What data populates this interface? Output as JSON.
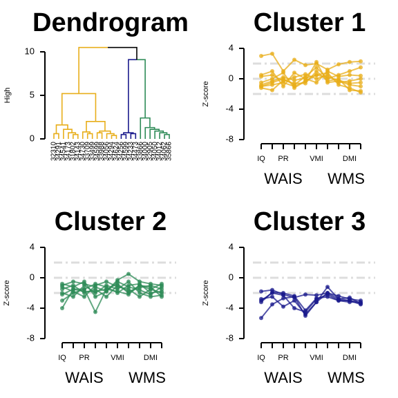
{
  "chart_data": [
    {
      "type": "dendrogram",
      "title": "Dendrogram",
      "y_label": "High",
      "ylim": [
        0,
        10
      ],
      "yticks": [
        0,
        5,
        10
      ],
      "leaves": [
        "32310",
        "34291",
        "34541",
        "34173",
        "31802",
        "34143",
        "34730",
        "33709",
        "33499",
        "34599",
        "33988",
        "34056",
        "34294",
        "34624",
        "34256",
        "34599",
        "34233",
        "34473",
        "33866",
        "34000",
        "32905",
        "34050",
        "34012",
        "34062",
        "35866"
      ],
      "tree": {
        "height": 10.5,
        "children": [
          {
            "height": 5.2,
            "color": "#E8AE1A",
            "children": [
              {
                "height": 1.6,
                "children": [
                  {
                    "height": 0.6,
                    "children": [
                      0,
                      1
                    ]
                  },
                  {
                    "height": 1.1,
                    "children": [
                      2,
                      {
                        "height": 0.7,
                        "children": [
                          3,
                          {
                            "height": 0.5,
                            "children": [
                              4,
                              5
                            ]
                          }
                        ]
                      }
                    ]
                  }
                ]
              },
              {
                "height": 2.0,
                "children": [
                  {
                    "height": 0.8,
                    "children": [
                      6,
                      {
                        "height": 0.6,
                        "children": [
                          7,
                          8
                        ]
                      }
                    ]
                  },
                  {
                    "height": 0.9,
                    "children": [
                      {
                        "height": 0.7,
                        "children": [
                          9,
                          10
                        ]
                      },
                      {
                        "height": 0.6,
                        "children": [
                          11,
                          {
                            "height": 0.4,
                            "children": [
                              12,
                              13
                            ]
                          }
                        ]
                      }
                    ]
                  }
                ]
              }
            ]
          },
          {
            "height": 9.1,
            "children": [
              {
                "height": 0.7,
                "color": "#1A1A8C",
                "children": [
                  {
                    "height": 0.5,
                    "children": [
                      14,
                      15
                    ]
                  },
                  {
                    "height": 0.6,
                    "children": [
                      16,
                      17
                    ]
                  }
                ]
              },
              {
                "height": 2.4,
                "color": "#2E8B57",
                "children": [
                  18,
                  {
                    "height": 1.3,
                    "children": [
                      19,
                      {
                        "height": 1.1,
                        "children": [
                          20,
                          {
                            "height": 0.9,
                            "children": [
                              21,
                              {
                                "height": 0.7,
                                "children": [
                                  22,
                                  {
                                    "height": 0.5,
                                    "children": [
                                      23,
                                      24
                                    ]
                                  }
                                ]
                              }
                            ]
                          }
                        ]
                      }
                    ]
                  }
                ]
              }
            ]
          }
        ]
      }
    },
    {
      "type": "line",
      "title": "Cluster 1",
      "y_label": "Z-score",
      "color": "#E8AE1A",
      "ylim": [
        -8,
        4
      ],
      "yticks": [
        -8,
        -4,
        0,
        4
      ],
      "reference_lines": [
        2,
        0,
        -2
      ],
      "categories": [
        "IQ",
        null,
        "PR",
        null,
        null,
        "VMI",
        null,
        null,
        "DMI",
        null
      ],
      "x_group_labels": [
        "WAIS",
        "WMS"
      ],
      "series": [
        {
          "values": [
            3,
            3.3,
            1,
            2.5,
            1.8,
            2,
            1.2,
            1.9,
            2.2,
            2.3
          ]
        },
        {
          "values": [
            -1,
            -0.5,
            0,
            -0.8,
            0.3,
            1.5,
            0,
            0.5,
            1,
            1.5
          ]
        },
        {
          "values": [
            -0.5,
            0,
            0.8,
            -1.2,
            -0.3,
            2.2,
            -0.5,
            -0.3,
            -0.8,
            -1
          ]
        },
        {
          "values": [
            0.3,
            0.5,
            -0.3,
            0.2,
            0.6,
            0,
            0.5,
            -0.5,
            -0.3,
            0
          ]
        },
        {
          "values": [
            -1,
            -0.8,
            -0.5,
            -1,
            -0.3,
            0.5,
            0.8,
            -0.8,
            -1.2,
            -1.8
          ]
        },
        {
          "values": [
            0.5,
            1,
            -1,
            0.8,
            0,
            -0.5,
            1,
            0.3,
            0.5,
            0.4
          ]
        },
        {
          "values": [
            -0.8,
            -0.3,
            0.2,
            -0.2,
            0.1,
            0.5,
            0.2,
            -0.2,
            -0.6,
            -0.5
          ]
        },
        {
          "values": [
            -1.2,
            -1.5,
            -0.2,
            -0.6,
            -0.6,
            1,
            -0.3,
            0,
            -1.5,
            -1.6
          ]
        }
      ]
    },
    {
      "type": "line",
      "title": "Cluster 2",
      "y_label": "Z-score",
      "color": "#2E8B57",
      "ylim": [
        -8,
        4
      ],
      "yticks": [
        -8,
        -4,
        0,
        4
      ],
      "reference_lines": [
        2,
        0,
        -2
      ],
      "categories": [
        "IQ",
        null,
        "PR",
        null,
        null,
        "VMI",
        null,
        null,
        "DMI",
        null
      ],
      "x_group_labels": [
        "WAIS",
        "WMS"
      ],
      "series": [
        {
          "values": [
            -4,
            -1.5,
            -1.5,
            -4.5,
            -1.5,
            -0.8,
            -2,
            -1,
            -1.5,
            -2
          ]
        },
        {
          "values": [
            -1,
            -0.5,
            -0.8,
            -1.2,
            -1.8,
            -0.3,
            0.5,
            -0.5,
            -0.8,
            -1
          ]
        },
        {
          "values": [
            -2,
            -2.5,
            -1,
            -2,
            -1,
            -1.5,
            -0.5,
            -2,
            -2.5,
            -2.3
          ]
        },
        {
          "values": [
            -1.5,
            -1,
            -2,
            -1.5,
            -2.5,
            -1,
            -1.8,
            -1.3,
            -1,
            -1.5
          ]
        },
        {
          "values": [
            -3,
            -2,
            -1.5,
            -0.8,
            -1.2,
            -2,
            -1,
            -0.8,
            -2,
            -1.8
          ]
        },
        {
          "values": [
            -1.2,
            -1.8,
            -2.5,
            -1,
            -0.5,
            -1.2,
            -1.5,
            -2.5,
            -1.5,
            -0.8
          ]
        },
        {
          "values": [
            -0.8,
            -1.2,
            -0.5,
            -2.5,
            -1.8,
            -0.5,
            -1.2,
            -1.6,
            -2.2,
            -1.2
          ]
        },
        {
          "values": [
            -2.2,
            -1.5,
            -1.8,
            -1.8,
            -1.5,
            -1.8,
            -2.2,
            -1,
            -1.2,
            -2.5
          ]
        }
      ]
    },
    {
      "type": "line",
      "title": "Cluster 3",
      "y_label": "Z-score",
      "color": "#1A1A8C",
      "ylim": [
        -8,
        4
      ],
      "yticks": [
        -8,
        -4,
        0,
        4
      ],
      "reference_lines": [
        2,
        0,
        -2
      ],
      "categories": [
        "IQ",
        null,
        "PR",
        null,
        null,
        "VMI",
        null,
        null,
        "DMI",
        null
      ],
      "x_group_labels": [
        "WAIS",
        "WMS"
      ],
      "series": [
        {
          "values": [
            -5.3,
            -3.5,
            -2.7,
            -2.5,
            -5,
            -3.2,
            -2,
            -2.8,
            -3,
            -3.5
          ]
        },
        {
          "values": [
            -3,
            -2,
            -2.3,
            -4,
            -4.5,
            -2.8,
            -2.2,
            -3,
            -3.2,
            -3.2
          ]
        },
        {
          "values": [
            -2.8,
            -2.5,
            -3.8,
            -3,
            -4.8,
            -3.2,
            -1.2,
            -2.8,
            -2.6,
            -3.4
          ]
        },
        {
          "values": [
            -1.8,
            -1.6,
            -2.2,
            -2.6,
            -2.2,
            -2.3,
            -2,
            -2.4,
            -2.8,
            -3
          ]
        },
        {
          "values": [
            -3.2,
            -1.9,
            -2,
            -2.4,
            -4.3,
            -2.7,
            -2.5,
            -3,
            -3,
            -3.3
          ]
        }
      ]
    }
  ]
}
